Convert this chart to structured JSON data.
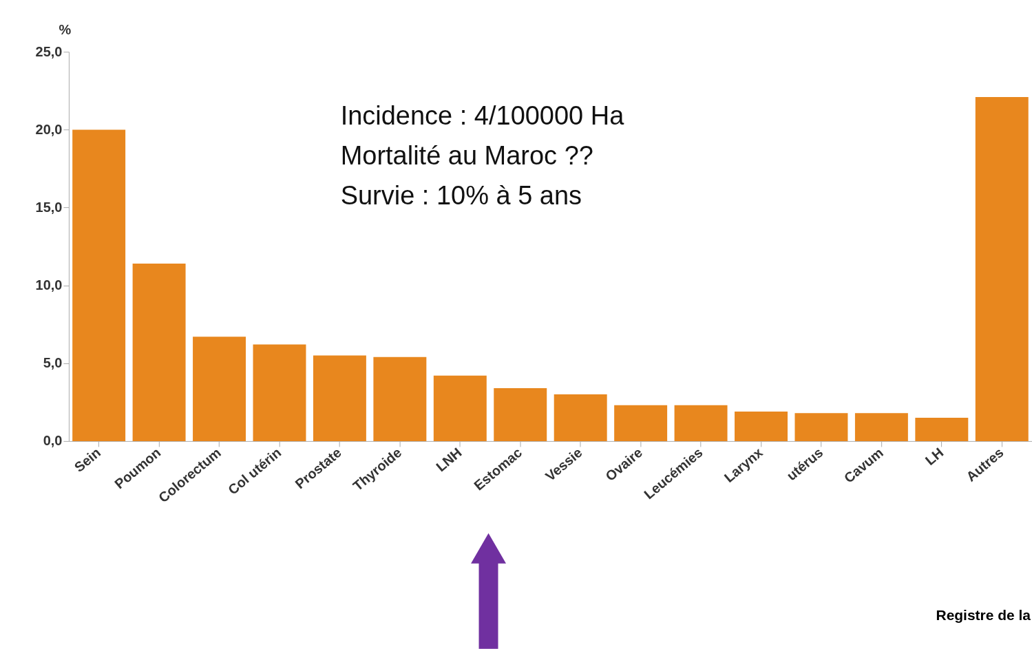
{
  "chart_data": {
    "type": "bar",
    "ylabel": "%",
    "categories": [
      "Sein",
      "Poumon",
      "Colorectum",
      "Col utérin",
      "Prostate",
      "Thyroide",
      "LNH",
      "Estomac",
      "Vessie",
      "Ovaire",
      "Leucémies",
      "Larynx",
      "utérus",
      "Cavum",
      "LH",
      "Autres"
    ],
    "values": [
      20.0,
      11.4,
      6.7,
      6.2,
      5.5,
      5.4,
      4.2,
      3.4,
      3.0,
      2.3,
      2.3,
      1.9,
      1.8,
      1.8,
      1.5,
      22.1
    ],
    "color": "#e8871e",
    "ylim": [
      0,
      25
    ],
    "yticks": [
      {
        "value": 0,
        "label": "0,0"
      },
      {
        "value": 5,
        "label": "5,0"
      },
      {
        "value": 10,
        "label": "10,0"
      },
      {
        "value": 15,
        "label": "15,0"
      },
      {
        "value": 20,
        "label": "20,0"
      },
      {
        "value": 25,
        "label": "25,0"
      }
    ],
    "grid": false,
    "annotations": [
      "Incidence : 4/100000 Ha",
      "Mortalité au Maroc ??",
      "Survie : 10% à 5 ans",
      "Registre de la"
    ]
  }
}
